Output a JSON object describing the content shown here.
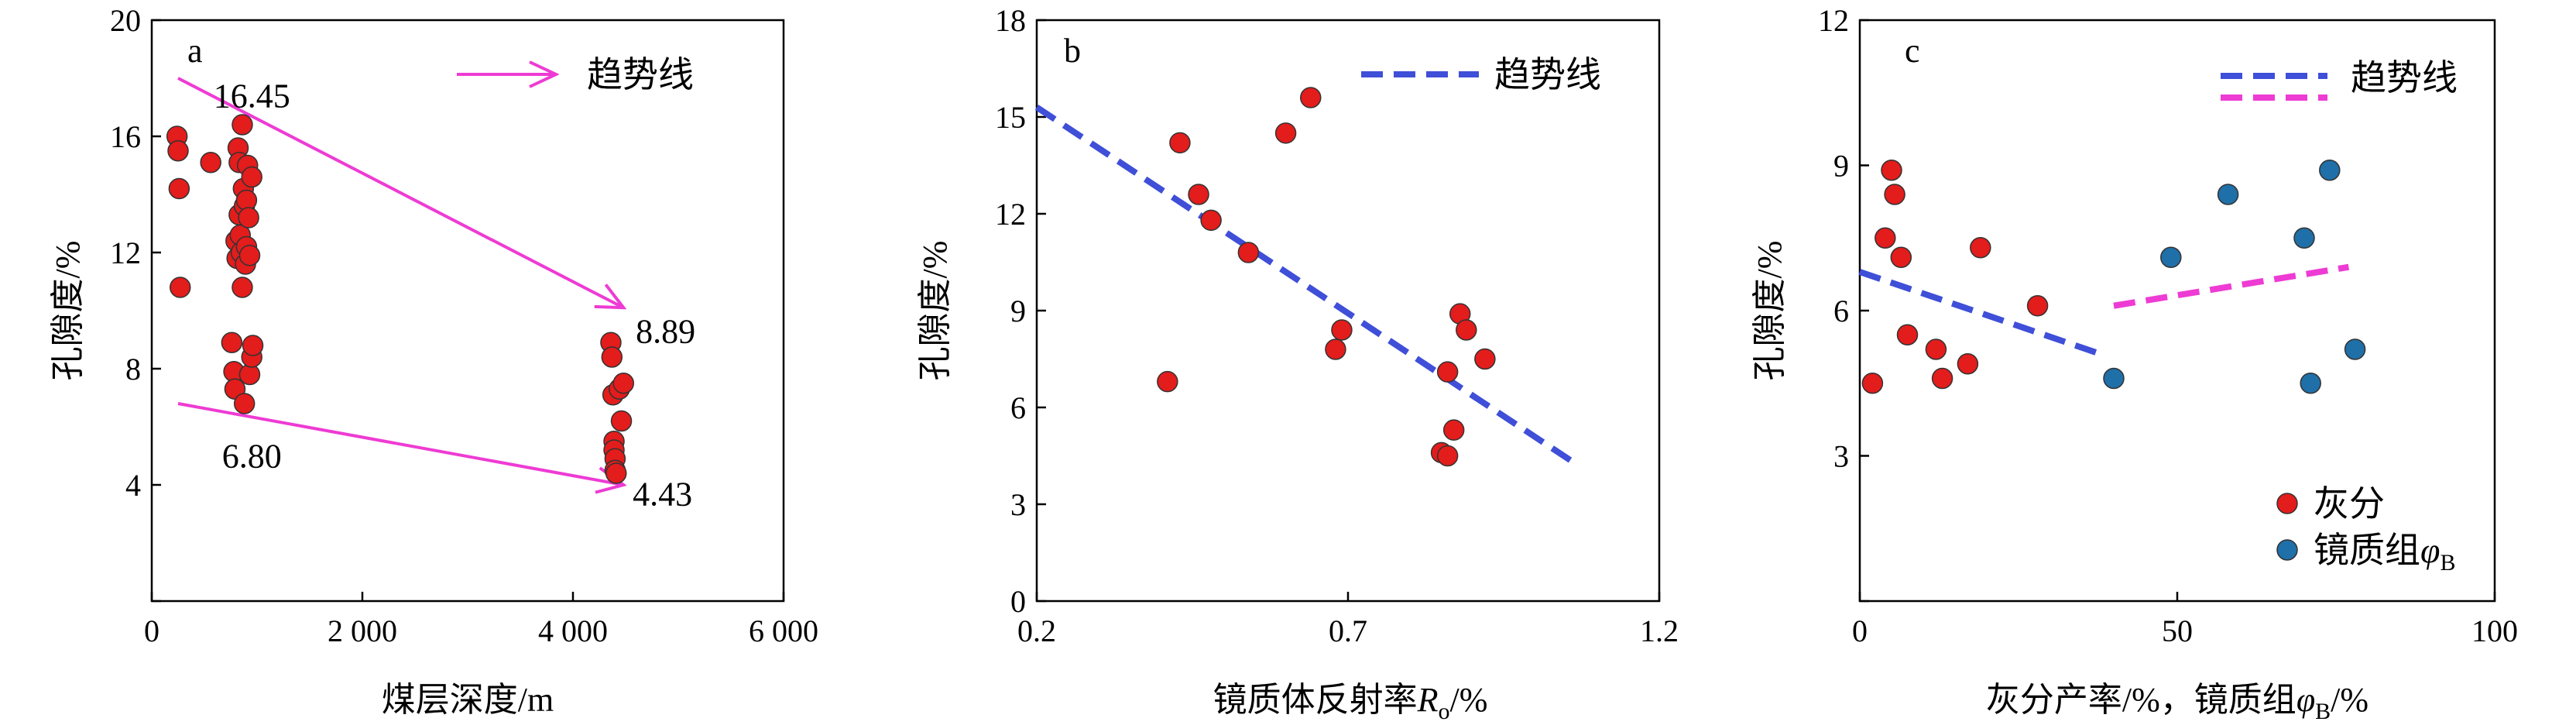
{
  "chart_data": [
    {
      "panel": "a",
      "type": "scatter",
      "xlabel": "煤层深度/m",
      "ylabel": "孔隙度/%",
      "xlim": [
        0,
        6000
      ],
      "ylim": [
        0,
        20
      ],
      "xticks": [
        0,
        2000,
        4000,
        6000
      ],
      "xtick_labels": [
        "0",
        "2 000",
        "4 000",
        "6 000"
      ],
      "yticks": [
        0,
        4,
        8,
        12,
        16,
        20
      ],
      "ytick_labels": [
        "",
        "4",
        "8",
        "12",
        "16",
        "20"
      ],
      "legend": {
        "label": "趋势线",
        "position": "top-right",
        "marker": "arrow",
        "color": "#ee3bd4"
      },
      "series": [
        {
          "marker_color": "#e31c1c",
          "points": [
            [
              240,
              16.0
            ],
            [
              250,
              15.5
            ],
            [
              260,
              14.2
            ],
            [
              270,
              10.8
            ],
            [
              560,
              15.1
            ],
            [
              760,
              8.9
            ],
            [
              780,
              7.9
            ],
            [
              790,
              7.3
            ],
            [
              800,
              12.4
            ],
            [
              810,
              11.8
            ],
            [
              820,
              15.6
            ],
            [
              830,
              15.1
            ],
            [
              830,
              13.3
            ],
            [
              840,
              12.6
            ],
            [
              850,
              12.0
            ],
            [
              860,
              16.4
            ],
            [
              860,
              10.8
            ],
            [
              870,
              14.2
            ],
            [
              880,
              13.6
            ],
            [
              880,
              6.8
            ],
            [
              890,
              11.6
            ],
            [
              900,
              12.2
            ],
            [
              900,
              13.8
            ],
            [
              910,
              15.0
            ],
            [
              920,
              13.2
            ],
            [
              930,
              11.9
            ],
            [
              930,
              7.8
            ],
            [
              950,
              14.6
            ],
            [
              950,
              8.4
            ],
            [
              960,
              8.8
            ],
            [
              4360,
              8.9
            ],
            [
              4370,
              8.4
            ],
            [
              4380,
              7.1
            ],
            [
              4390,
              5.5
            ],
            [
              4390,
              5.2
            ],
            [
              4400,
              4.9
            ],
            [
              4400,
              4.5
            ],
            [
              4410,
              4.4
            ],
            [
              4440,
              7.3
            ],
            [
              4460,
              6.2
            ],
            [
              4480,
              7.5
            ]
          ]
        }
      ],
      "trend_arrows": [
        {
          "from": [
            250,
            18.0
          ],
          "to": [
            4480,
            10.1
          ]
        },
        {
          "from": [
            250,
            6.8
          ],
          "to": [
            4480,
            4.0
          ]
        }
      ],
      "annotations": [
        {
          "text": "16.45",
          "x": 950,
          "y": 17.4
        },
        {
          "text": "8.89",
          "x": 4880,
          "y": 9.3
        },
        {
          "text": "6.80",
          "x": 950,
          "y": 5.0
        },
        {
          "text": "4.43",
          "x": 4850,
          "y": 3.7
        }
      ],
      "grid": false
    },
    {
      "panel": "b",
      "type": "scatter",
      "xlabel": "镜质体反射率Ro/%",
      "ylabel": "孔隙度/%",
      "xlim": [
        0.2,
        1.2
      ],
      "ylim": [
        0,
        18
      ],
      "xticks": [
        0.2,
        0.7,
        1.2
      ],
      "xtick_labels": [
        "0.2",
        "0.7",
        "1.2"
      ],
      "yticks": [
        0,
        3,
        6,
        9,
        12,
        15,
        18
      ],
      "ytick_labels": [
        "0",
        "3",
        "6",
        "9",
        "12",
        "15",
        "18"
      ],
      "legend": {
        "label": "趋势线",
        "position": "top-right",
        "marker": "dashed-line",
        "color": "#3f4fd8"
      },
      "series": [
        {
          "marker_color": "#e31c1c",
          "points": [
            [
              0.41,
              6.8
            ],
            [
              0.43,
              14.2
            ],
            [
              0.46,
              12.6
            ],
            [
              0.48,
              11.8
            ],
            [
              0.54,
              10.8
            ],
            [
              0.6,
              14.5
            ],
            [
              0.64,
              15.6
            ],
            [
              0.68,
              7.8
            ],
            [
              0.69,
              8.4
            ],
            [
              0.85,
              4.6
            ],
            [
              0.86,
              4.5
            ],
            [
              0.86,
              7.1
            ],
            [
              0.87,
              5.3
            ],
            [
              0.88,
              8.9
            ],
            [
              0.89,
              8.4
            ],
            [
              0.92,
              7.5
            ]
          ]
        }
      ],
      "trend_line": {
        "from": [
          0.2,
          15.3
        ],
        "to": [
          1.07,
          4.2
        ]
      },
      "grid": false
    },
    {
      "panel": "c",
      "type": "scatter",
      "xlabel": "灰分产率/%，镜质组φB/%",
      "ylabel": "孔隙度/%",
      "xlim": [
        0,
        100
      ],
      "ylim": [
        0,
        12
      ],
      "xticks": [
        0,
        50,
        100
      ],
      "xtick_labels": [
        "0",
        "50",
        "100"
      ],
      "yticks": [
        0,
        3,
        6,
        9,
        12
      ],
      "ytick_labels": [
        "",
        "3",
        "6",
        "9",
        "12"
      ],
      "legend": [
        {
          "label": "趋势线",
          "marker": "dashed-line",
          "color": "#3f4fd8",
          "position": "top-right"
        },
        {
          "label": "",
          "marker": "dashed-line",
          "color": "#ee3bd4",
          "position": "top-right"
        },
        {
          "label": "灰分",
          "marker": "dot",
          "color": "#e31c1c",
          "position": "bottom-right"
        },
        {
          "label": "镜质组φB",
          "marker": "dot",
          "color": "#1f6fa8",
          "position": "bottom-right"
        }
      ],
      "series": [
        {
          "name": "灰分",
          "marker_color": "#e31c1c",
          "points": [
            [
              2,
              4.5
            ],
            [
              4,
              7.5
            ],
            [
              5,
              8.9
            ],
            [
              5.5,
              8.4
            ],
            [
              6.5,
              7.1
            ],
            [
              7.5,
              5.5
            ],
            [
              12,
              5.2
            ],
            [
              13,
              4.6
            ],
            [
              17,
              4.9
            ],
            [
              19,
              7.3
            ],
            [
              28,
              6.1
            ]
          ]
        },
        {
          "name": "镜质组φB",
          "marker_color": "#1f6fa8",
          "points": [
            [
              40,
              4.6
            ],
            [
              49,
              7.1
            ],
            [
              58,
              8.4
            ],
            [
              70,
              7.5
            ],
            [
              71,
              4.5
            ],
            [
              74,
              8.9
            ],
            [
              78,
              5.2
            ]
          ]
        }
      ],
      "trend_lines": [
        {
          "color": "#3f4fd8",
          "from": [
            0,
            6.8
          ],
          "to": [
            38,
            5.1
          ]
        },
        {
          "color": "#ee3bd4",
          "from": [
            40,
            6.1
          ],
          "to": [
            77,
            6.9
          ]
        }
      ],
      "grid": false
    }
  ]
}
